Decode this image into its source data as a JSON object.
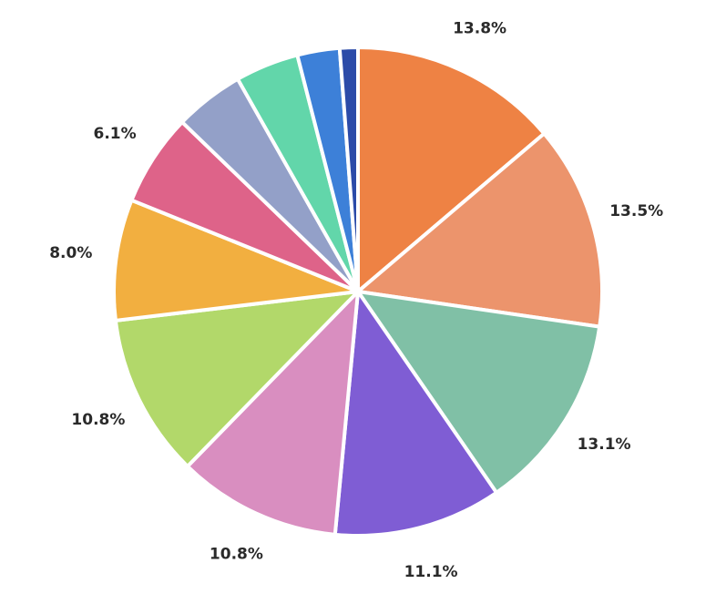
{
  "chart_data": {
    "type": "pie",
    "start_angle_deg": 0,
    "direction": "clockwise",
    "slices": [
      {
        "value": 13.8,
        "label": "13.8%",
        "color": "#EE8244"
      },
      {
        "value": 13.5,
        "label": "13.5%",
        "color": "#EC946C"
      },
      {
        "value": 13.1,
        "label": "13.1%",
        "color": "#80C0A6"
      },
      {
        "value": 11.1,
        "label": "11.1%",
        "color": "#7F5DD4"
      },
      {
        "value": 10.8,
        "label": "10.8%",
        "color": "#D98EC0"
      },
      {
        "value": 10.8,
        "label": "10.8%",
        "color": "#B2D86A"
      },
      {
        "value": 8.0,
        "label": "8.0%",
        "color": "#F2AF40"
      },
      {
        "value": 6.1,
        "label": "6.1%",
        "color": "#DE6389"
      },
      {
        "value": 4.6,
        "label": "",
        "color": "#93A0C8"
      },
      {
        "value": 4.2,
        "label": "",
        "color": "#62D6AA"
      },
      {
        "value": 2.8,
        "label": "",
        "color": "#3D80D8"
      },
      {
        "value": 1.2,
        "label": "",
        "color": "#2C4BA8"
      }
    ]
  }
}
